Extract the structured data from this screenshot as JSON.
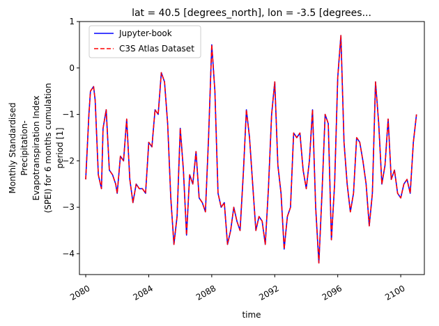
{
  "chart_data": {
    "type": "line",
    "title": "lat = 40.5 [degrees_north], lon = -3.5 [degrees...",
    "xlabel": "time",
    "ylabel_lines": [
      "Monthly Standardised",
      "Precipitation-",
      "Evapotranspiration Index",
      "(SPEI) for 6 months cumulation",
      "period [1]"
    ],
    "xlim": [
      2079.6,
      2101.5
    ],
    "ylim": [
      -4.45,
      1.0
    ],
    "x_ticks": [
      2080,
      2084,
      2088,
      2092,
      2096,
      2100
    ],
    "x_tick_labels": [
      "2080",
      "2084",
      "2088",
      "2092",
      "2096",
      "2100"
    ],
    "y_ticks": [
      1,
      0,
      -1,
      -2,
      -3,
      -4
    ],
    "y_tick_labels": [
      "1",
      "0",
      "−1",
      "−2",
      "−3",
      "−4"
    ],
    "legend_position": "upper-left",
    "legend": [
      "Jupyter-book",
      "C3S Atlas Dataset"
    ],
    "series": [
      {
        "name": "Jupyter-book",
        "color": "#0000ff",
        "style": "solid"
      },
      {
        "name": "C3S Atlas Dataset",
        "color": "#ff0000",
        "style": "dashed"
      }
    ],
    "x": [
      2080.0,
      2080.2,
      2080.3,
      2080.5,
      2080.6,
      2080.8,
      2081.0,
      2081.1,
      2081.3,
      2081.5,
      2081.7,
      2081.9,
      2082.0,
      2082.2,
      2082.4,
      2082.6,
      2082.8,
      2083.0,
      2083.2,
      2083.4,
      2083.6,
      2083.8,
      2084.0,
      2084.2,
      2084.4,
      2084.6,
      2084.8,
      2085.0,
      2085.2,
      2085.4,
      2085.6,
      2085.8,
      2086.0,
      2086.2,
      2086.4,
      2086.6,
      2086.8,
      2087.0,
      2087.2,
      2087.4,
      2087.6,
      2087.8,
      2088.0,
      2088.2,
      2088.4,
      2088.6,
      2088.8,
      2089.0,
      2089.2,
      2089.4,
      2089.6,
      2089.8,
      2090.0,
      2090.2,
      2090.4,
      2090.6,
      2090.8,
      2091.0,
      2091.2,
      2091.4,
      2091.6,
      2091.8,
      2092.0,
      2092.2,
      2092.4,
      2092.6,
      2092.8,
      2093.0,
      2093.2,
      2093.4,
      2093.6,
      2093.8,
      2094.0,
      2094.2,
      2094.4,
      2094.6,
      2094.8,
      2095.0,
      2095.2,
      2095.4,
      2095.6,
      2095.8,
      2096.0,
      2096.2,
      2096.4,
      2096.6,
      2096.8,
      2097.0,
      2097.2,
      2097.4,
      2097.6,
      2097.8,
      2098.0,
      2098.2,
      2098.4,
      2098.6,
      2098.8,
      2099.0,
      2099.2,
      2099.4,
      2099.6,
      2099.8,
      2100.0,
      2100.2,
      2100.4,
      2100.6,
      2100.8,
      2101.0
    ],
    "values": [
      -2.4,
      -1.0,
      -0.5,
      -0.4,
      -0.7,
      -2.3,
      -2.6,
      -1.3,
      -0.9,
      -2.2,
      -2.3,
      -2.5,
      -2.7,
      -1.9,
      -2.0,
      -1.1,
      -2.4,
      -2.9,
      -2.5,
      -2.6,
      -2.6,
      -2.7,
      -1.6,
      -1.7,
      -0.9,
      -1.0,
      -0.1,
      -0.3,
      -1.2,
      -2.8,
      -3.8,
      -3.2,
      -1.3,
      -2.2,
      -3.6,
      -2.3,
      -2.5,
      -1.8,
      -2.8,
      -2.9,
      -3.1,
      -1.5,
      0.5,
      -0.5,
      -2.7,
      -3.0,
      -2.9,
      -3.8,
      -3.5,
      -3.0,
      -3.3,
      -3.5,
      -2.3,
      -0.9,
      -1.5,
      -2.5,
      -3.5,
      -3.2,
      -3.3,
      -3.8,
      -2.6,
      -1.0,
      -0.3,
      -2.1,
      -2.7,
      -3.9,
      -3.2,
      -3.0,
      -1.4,
      -1.5,
      -1.4,
      -2.2,
      -2.6,
      -2.0,
      -0.9,
      -3.0,
      -4.2,
      -2.7,
      -1.0,
      -1.2,
      -3.7,
      -2.5,
      -0.2,
      0.7,
      -1.6,
      -2.5,
      -3.1,
      -2.7,
      -1.5,
      -1.6,
      -2.0,
      -2.5,
      -3.4,
      -2.7,
      -0.3,
      -1.2,
      -2.5,
      -2.1,
      -1.1,
      -2.4,
      -2.2,
      -2.7,
      -2.8,
      -2.5,
      -2.4,
      -2.7,
      -1.6,
      -1.0
    ]
  }
}
